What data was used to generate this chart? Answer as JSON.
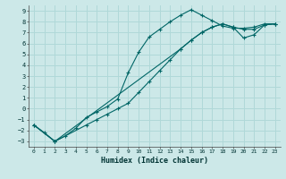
{
  "xlabel": "Humidex (Indice chaleur)",
  "xlim": [
    -0.5,
    23.5
  ],
  "ylim": [
    -3.5,
    9.5
  ],
  "xticks": [
    0,
    1,
    2,
    3,
    4,
    5,
    6,
    7,
    8,
    9,
    10,
    11,
    12,
    13,
    14,
    15,
    16,
    17,
    18,
    19,
    20,
    21,
    22,
    23
  ],
  "yticks": [
    -3,
    -2,
    -1,
    0,
    1,
    2,
    3,
    4,
    5,
    6,
    7,
    8,
    9
  ],
  "bg_color": "#cce8e8",
  "line_color": "#006666",
  "grid_color": "#b0d8d8",
  "line1_x": [
    0,
    1,
    2,
    3,
    4,
    5,
    6,
    7,
    8,
    9,
    10,
    11,
    12,
    13,
    14,
    15,
    16,
    17,
    18,
    19,
    20,
    21,
    22,
    23
  ],
  "line1_y": [
    -1.5,
    -2.2,
    -3,
    -2.5,
    -1.8,
    -0.8,
    -0.3,
    0.2,
    0.9,
    3.3,
    5.2,
    6.6,
    7.3,
    8.0,
    8.6,
    9.1,
    8.6,
    8.1,
    7.6,
    7.4,
    7.4,
    7.5,
    7.8,
    7.8
  ],
  "line2_x": [
    0,
    2,
    5,
    6,
    7,
    8,
    9,
    10,
    11,
    12,
    13,
    14,
    15,
    16,
    17,
    18,
    19,
    20,
    21,
    22,
    23
  ],
  "line2_y": [
    -1.5,
    -3,
    -1.5,
    -1.0,
    -0.5,
    0.0,
    0.5,
    1.5,
    2.5,
    3.5,
    4.5,
    5.5,
    6.3,
    7.0,
    7.5,
    7.8,
    7.5,
    7.3,
    7.3,
    7.7,
    7.8
  ],
  "line3_x": [
    0,
    2,
    14,
    15,
    16,
    17,
    18,
    19,
    20,
    21,
    22,
    23
  ],
  "line3_y": [
    -1.5,
    -3,
    5.5,
    6.3,
    7.0,
    7.5,
    7.8,
    7.5,
    6.5,
    6.8,
    7.7,
    7.8
  ]
}
